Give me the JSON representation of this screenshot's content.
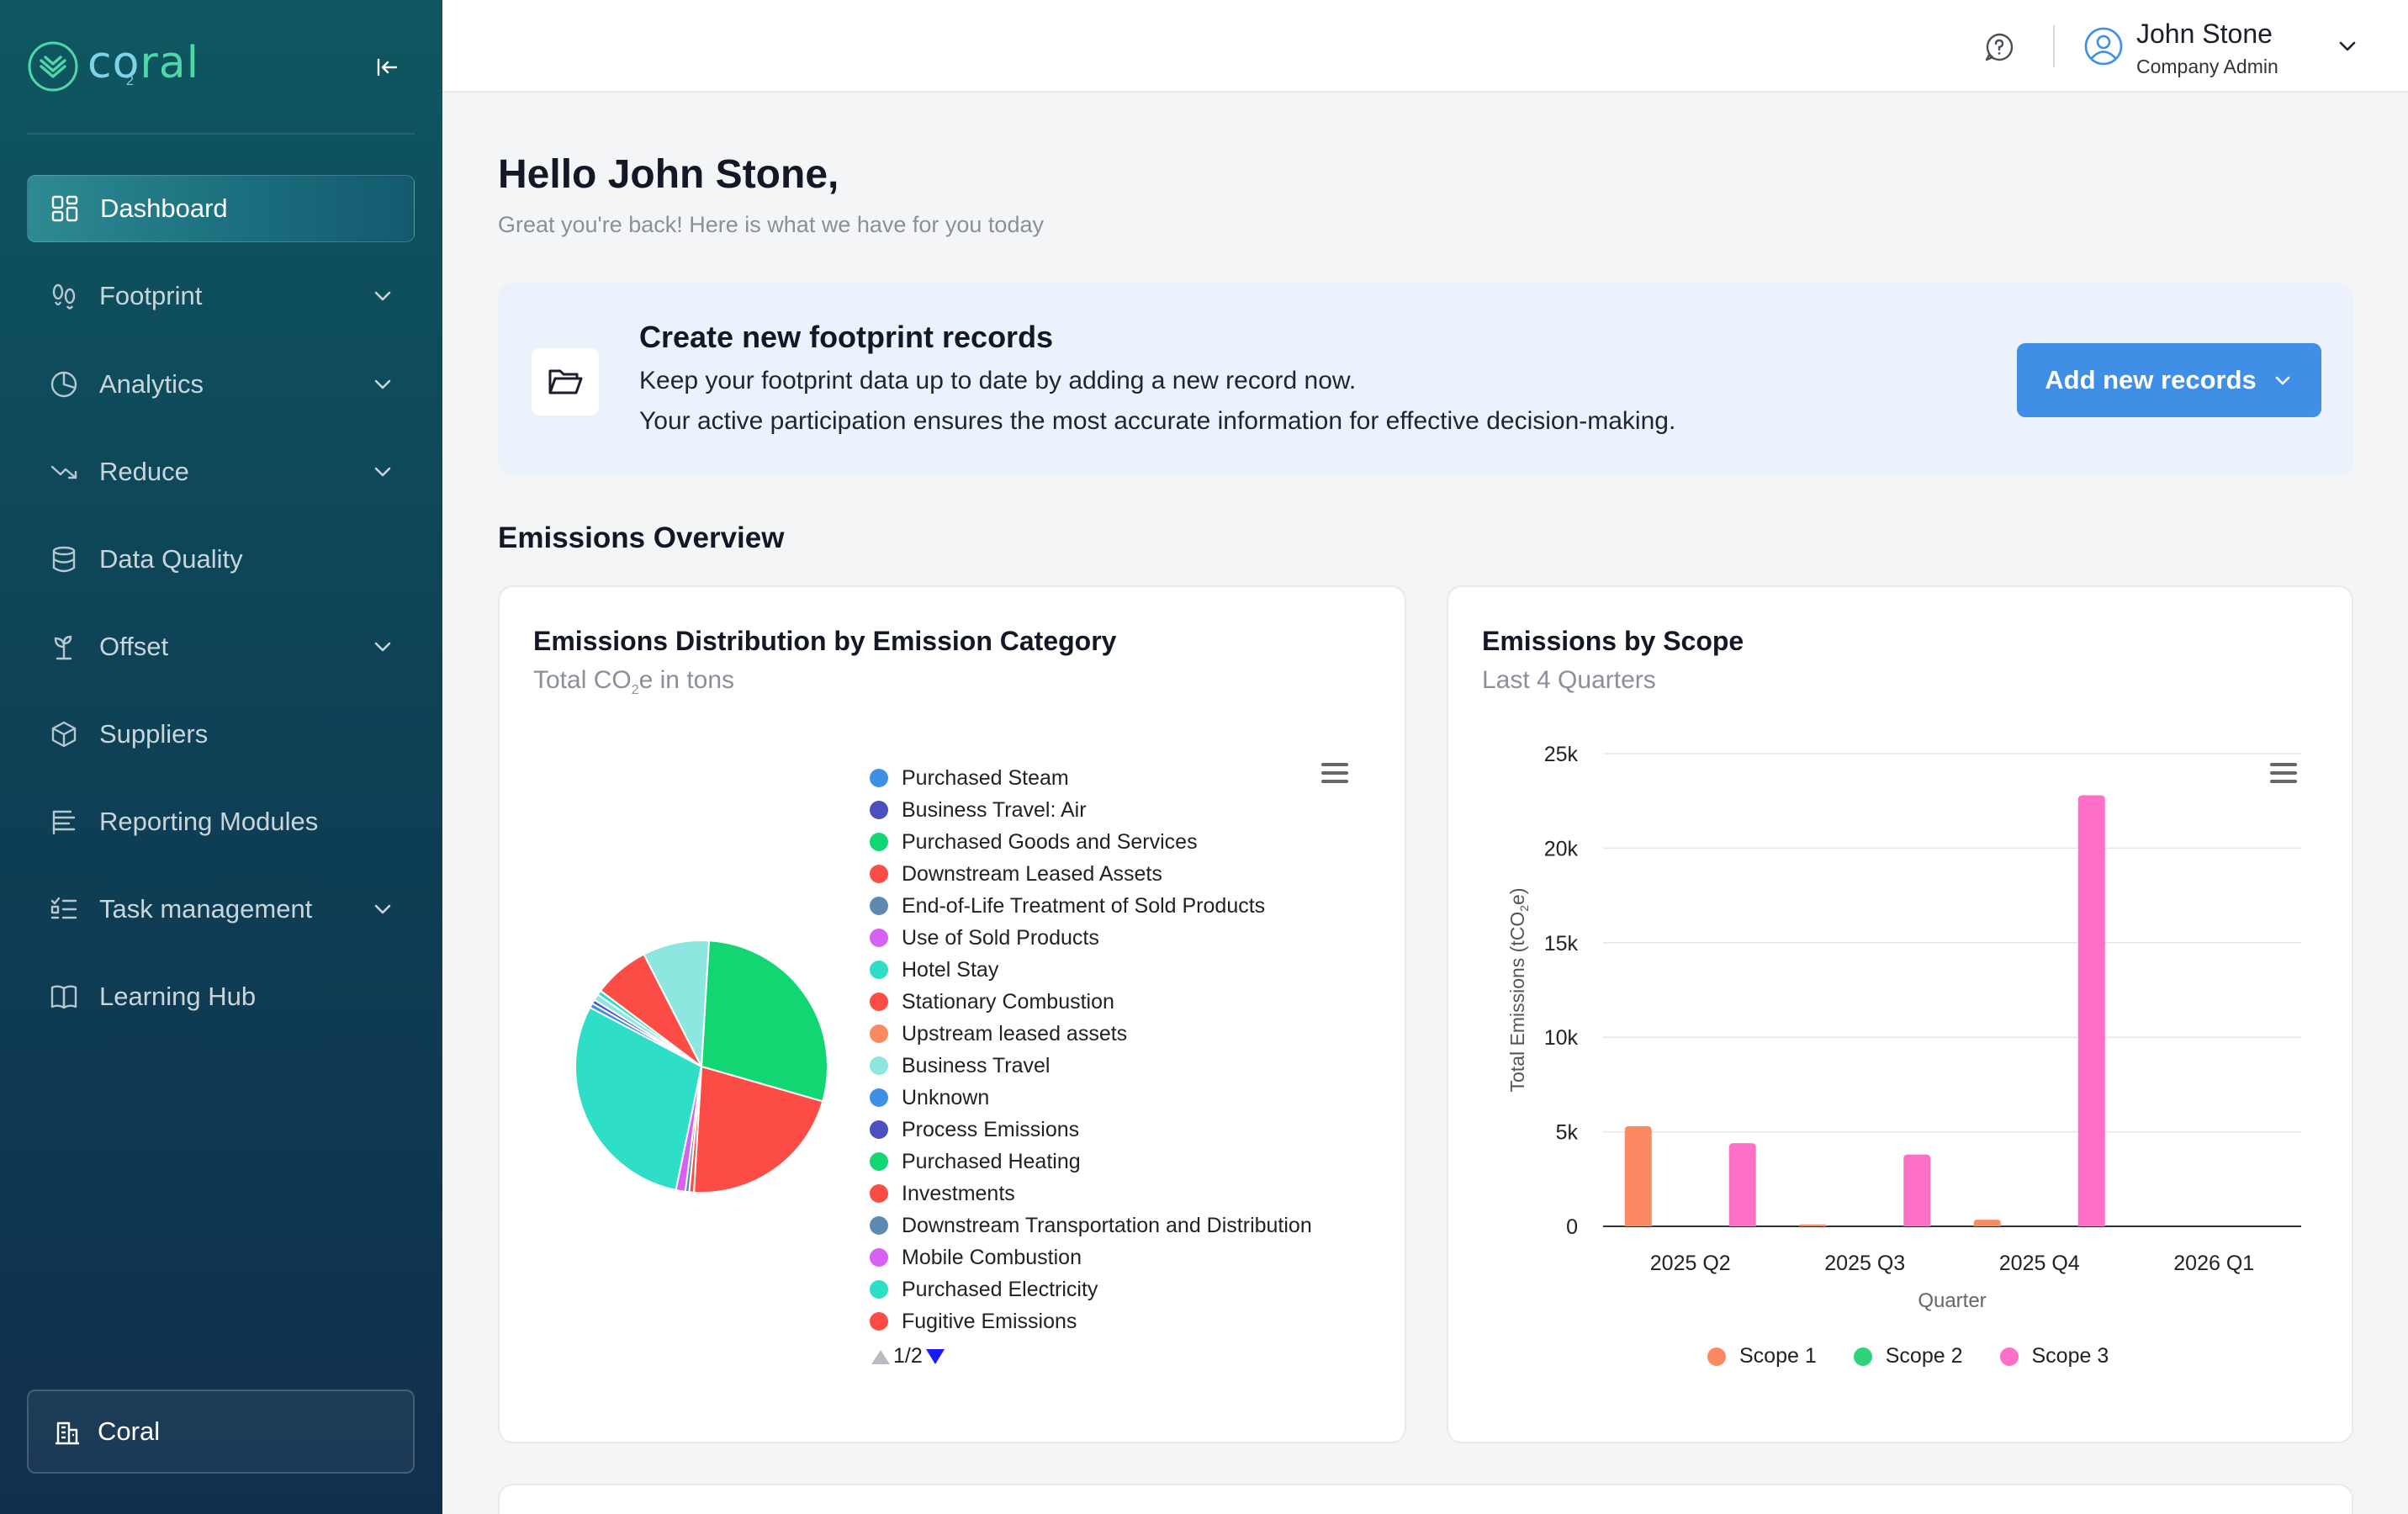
{
  "app": {
    "logo_text_a": "co",
    "logo_text_b": "ral",
    "logo_sub": "2"
  },
  "sidebar": {
    "items": [
      {
        "label": "Dashboard",
        "icon": "grid-icon",
        "active": true,
        "expandable": false
      },
      {
        "label": "Footprint",
        "icon": "footprint-icon",
        "expandable": true
      },
      {
        "label": "Analytics",
        "icon": "pie-chart-icon",
        "expandable": true
      },
      {
        "label": "Reduce",
        "icon": "trend-down-icon",
        "expandable": true
      },
      {
        "label": "Data Quality",
        "icon": "database-icon",
        "expandable": false
      },
      {
        "label": "Offset",
        "icon": "sprout-icon",
        "expandable": true
      },
      {
        "label": "Suppliers",
        "icon": "cube-icon",
        "expandable": false
      },
      {
        "label": "Reporting Modules",
        "icon": "report-icon",
        "expandable": false
      },
      {
        "label": "Task management",
        "icon": "checklist-icon",
        "expandable": true
      },
      {
        "label": "Learning Hub",
        "icon": "book-icon",
        "expandable": false
      }
    ],
    "organization": "Coral"
  },
  "header": {
    "user_name": "John Stone",
    "user_role": "Company Admin"
  },
  "main": {
    "greeting": "Hello John Stone,",
    "greeting_sub": "Great you're back! Here is what we have for you today",
    "banner": {
      "title": "Create new footprint records",
      "line1": "Keep your footprint data up to date by adding a new record now.",
      "line2": "Your active participation ensures the most accurate information for effective decision-making.",
      "button": "Add new records"
    },
    "section_title": "Emissions Overview",
    "card1": {
      "title": "Emissions Distribution by Emission Category",
      "subtitle_pre": "Total CO",
      "subtitle_sub": "2",
      "subtitle_post": "e in tons"
    },
    "card2": {
      "title": "Emissions by Scope",
      "subtitle": "Last 4 Quarters"
    }
  },
  "colors": {
    "accent": "#3f8fe6",
    "sidebar_top": "#0f5761",
    "sidebar_bottom": "#102f4d",
    "scope1": "#fb8a62",
    "scope2": "#2ed47a",
    "scope3": "#ff6ec7"
  },
  "chart_data": [
    {
      "type": "pie",
      "title": "Emissions Distribution by Emission Category",
      "subtitle": "Total CO2e in tons",
      "legend_page": "1/2",
      "legend": [
        {
          "label": "Purchased Steam",
          "color": "#3f8fe6"
        },
        {
          "label": "Business Travel: Air",
          "color": "#4b4fbf"
        },
        {
          "label": "Purchased Goods and Services",
          "color": "#11d672"
        },
        {
          "label": "Downstream Leased Assets",
          "color": "#fb4d45"
        },
        {
          "label": "End-of-Life Treatment of Sold Products",
          "color": "#5f8ab0"
        },
        {
          "label": "Use of Sold Products",
          "color": "#d562f2"
        },
        {
          "label": "Hotel Stay",
          "color": "#2fdec6"
        },
        {
          "label": "Stationary Combustion",
          "color": "#fb4d45"
        },
        {
          "label": "Upstream leased assets",
          "color": "#fb8a62"
        },
        {
          "label": "Business Travel",
          "color": "#8ee6e0"
        },
        {
          "label": "Unknown",
          "color": "#3f8fe6"
        },
        {
          "label": "Process Emissions",
          "color": "#4b4fbf"
        },
        {
          "label": "Purchased Heating",
          "color": "#11d672"
        },
        {
          "label": "Investments",
          "color": "#fb4d45"
        },
        {
          "label": "Downstream Transportation and Distribution",
          "color": "#5f8ab0"
        },
        {
          "label": "Mobile Combustion",
          "color": "#d562f2"
        },
        {
          "label": "Purchased Electricity",
          "color": "#2fdec6"
        },
        {
          "label": "Fugitive Emissions",
          "color": "#fb4d45"
        }
      ],
      "slices": [
        {
          "label": "Purchased Goods and Services",
          "value": 28.5,
          "color": "#11d672"
        },
        {
          "label": "Investments",
          "value": 21.5,
          "color": "#fb4d45"
        },
        {
          "label": "Fugitive Emissions",
          "value": 0.6,
          "color": "#fb4d45"
        },
        {
          "label": "Downstream Transportation and Distribution",
          "value": 0.5,
          "color": "#5f8ab0"
        },
        {
          "label": "Mobile Combustion",
          "value": 1.2,
          "color": "#d562f2"
        },
        {
          "label": "Purchased Electricity",
          "value": 29.5,
          "color": "#2fdec6"
        },
        {
          "label": "Unknown",
          "value": 0.6,
          "color": "#3f8fe6"
        },
        {
          "label": "Process Emissions",
          "value": 0.5,
          "color": "#4b4fbf"
        },
        {
          "label": "Business Travel",
          "value": 0.8,
          "color": "#8ee6e0"
        },
        {
          "label": "Hotel Stay",
          "value": 0.6,
          "color": "#2fdec6"
        },
        {
          "label": "Stationary Combustion",
          "value": 7.2,
          "color": "#fb4d45"
        },
        {
          "label": "Business Travel",
          "value": 8.5,
          "color": "#8ee6e0"
        }
      ]
    },
    {
      "type": "bar",
      "title": "Emissions by Scope",
      "subtitle": "Last 4 Quarters",
      "xlabel": "Quarter",
      "ylabel_pre": "Total Emissions (tCO",
      "ylabel_sub": "2",
      "ylabel_post": "e)",
      "categories": [
        "2025 Q2",
        "2025 Q3",
        "2025 Q4",
        "2026 Q1"
      ],
      "ylim": [
        0,
        25000
      ],
      "yticks": [
        0,
        5000,
        10000,
        15000,
        20000,
        25000
      ],
      "ytick_labels": [
        "0",
        "5k",
        "10k",
        "15k",
        "20k",
        "25k"
      ],
      "series": [
        {
          "name": "Scope 1",
          "color": "#fb8a62",
          "values": [
            5300,
            100,
            350,
            0
          ]
        },
        {
          "name": "Scope 2",
          "color": "#2ed47a",
          "values": [
            0,
            0,
            0,
            0
          ]
        },
        {
          "name": "Scope 3",
          "color": "#ff6ec7",
          "values": [
            4400,
            3800,
            22800,
            0
          ]
        }
      ]
    }
  ]
}
